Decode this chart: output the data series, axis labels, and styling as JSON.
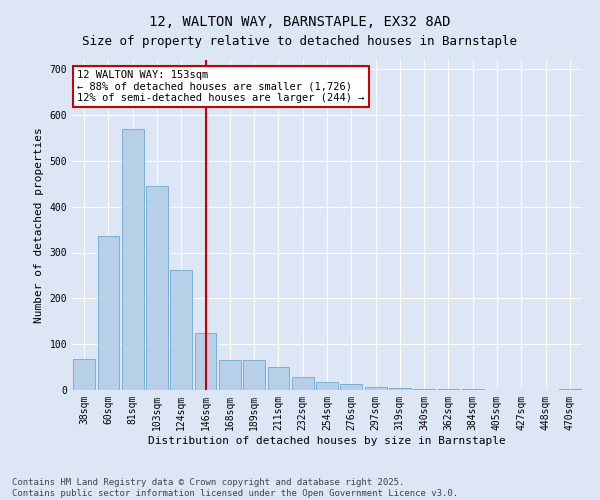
{
  "title_line1": "12, WALTON WAY, BARNSTAPLE, EX32 8AD",
  "title_line2": "Size of property relative to detached houses in Barnstaple",
  "xlabel": "Distribution of detached houses by size in Barnstaple",
  "ylabel": "Number of detached properties",
  "categories": [
    "38sqm",
    "60sqm",
    "81sqm",
    "103sqm",
    "124sqm",
    "146sqm",
    "168sqm",
    "189sqm",
    "211sqm",
    "232sqm",
    "254sqm",
    "276sqm",
    "297sqm",
    "319sqm",
    "340sqm",
    "362sqm",
    "384sqm",
    "405sqm",
    "427sqm",
    "448sqm",
    "470sqm"
  ],
  "values": [
    68,
    335,
    570,
    445,
    262,
    125,
    65,
    65,
    50,
    28,
    17,
    14,
    6,
    4,
    3,
    2,
    2,
    1,
    0,
    0,
    3
  ],
  "bar_color": "#b8cfe8",
  "bar_edge_color": "#6aaad4",
  "vline_x": 5,
  "vline_color": "#cc0000",
  "annotation_text": "12 WALTON WAY: 153sqm\n← 88% of detached houses are smaller (1,726)\n12% of semi-detached houses are larger (244) →",
  "annotation_box_edgecolor": "#cc0000",
  "bg_color": "#dce6f5",
  "plot_bg_color": "#dce6f5",
  "ylim": [
    0,
    720
  ],
  "yticks": [
    0,
    100,
    200,
    300,
    400,
    500,
    600,
    700
  ],
  "grid_color": "#ffffff",
  "footnote_line1": "Contains HM Land Registry data © Crown copyright and database right 2025.",
  "footnote_line2": "Contains public sector information licensed under the Open Government Licence v3.0.",
  "title_fontsize": 10,
  "subtitle_fontsize": 9,
  "axis_label_fontsize": 8,
  "tick_fontsize": 7,
  "annot_fontsize": 7.5,
  "footnote_fontsize": 6.5
}
